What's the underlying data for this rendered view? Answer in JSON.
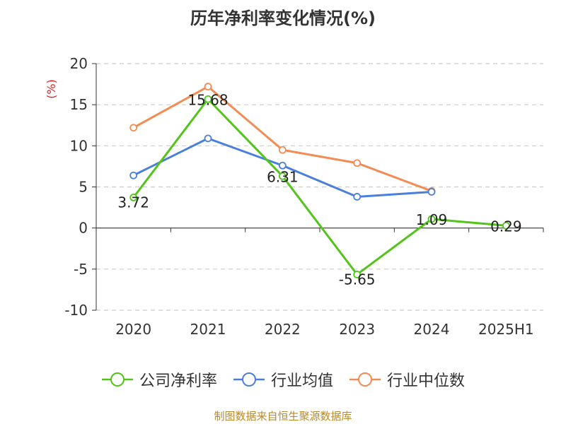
{
  "chart_data": {
    "type": "line",
    "title": "历年净利率变化情况(%)",
    "ylabel": "(%)",
    "xlabel": "",
    "categories": [
      "2020",
      "2021",
      "2022",
      "2023",
      "2024",
      "2025H1"
    ],
    "ylim": [
      -10,
      20
    ],
    "yticks": [
      -10,
      -5,
      0,
      5,
      10,
      15,
      20
    ],
    "grid": true,
    "legend_position": "bottom",
    "series": [
      {
        "name": "公司净利率",
        "color": "#52c41a",
        "values": [
          3.72,
          15.68,
          6.31,
          -5.65,
          1.09,
          0.29
        ],
        "labels": [
          "3.72",
          "15.68",
          "6.31",
          "-5.65",
          "1.09",
          "0.29"
        ]
      },
      {
        "name": "行业均值",
        "color": "#4a7fdb",
        "values": [
          6.4,
          10.9,
          7.6,
          3.8,
          4.4,
          null
        ]
      },
      {
        "name": "行业中位数",
        "color": "#f28c54",
        "values": [
          12.2,
          17.2,
          9.5,
          7.9,
          4.5,
          null
        ]
      }
    ]
  },
  "source_text": "制图数据来自恒生聚源数据库"
}
